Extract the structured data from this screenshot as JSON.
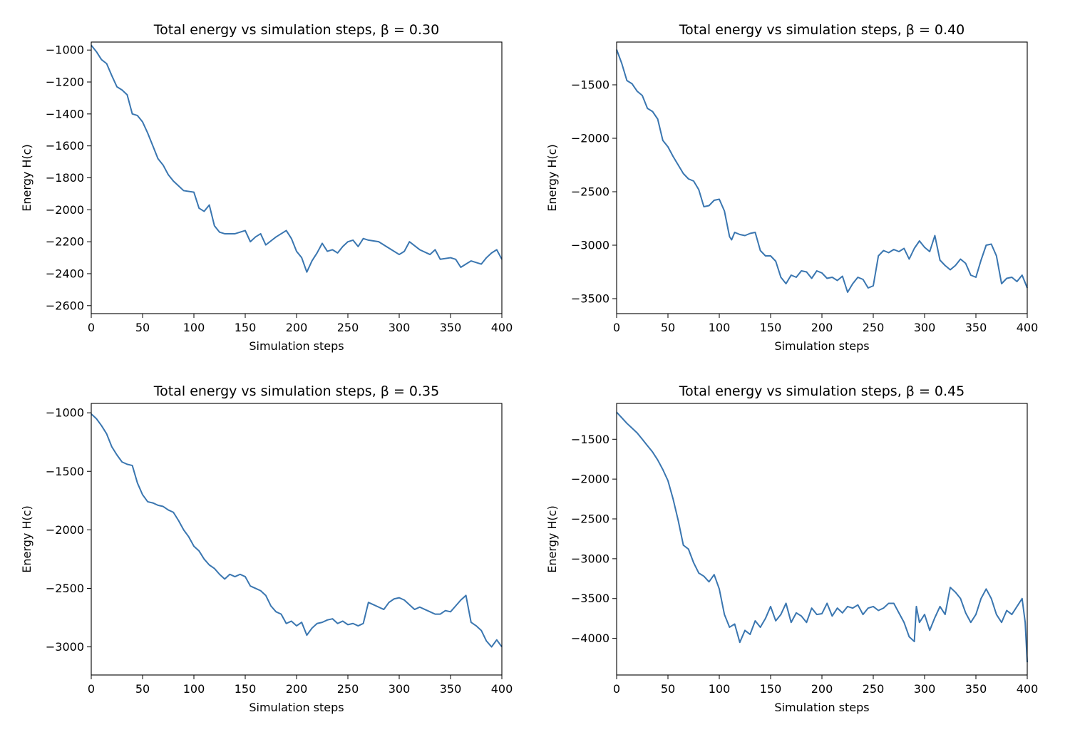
{
  "chart_data": [
    {
      "type": "line",
      "title": "Total energy vs simulation steps, β = 0.30",
      "xlabel": "Simulation steps",
      "ylabel": "Energy H(c)",
      "xlim": [
        0,
        400
      ],
      "ylim": [
        -2650,
        -950
      ],
      "xticks": [
        0,
        50,
        100,
        150,
        200,
        250,
        300,
        350,
        400
      ],
      "xtick_labels": [
        "0",
        "50",
        "100",
        "150",
        "200",
        "250",
        "300",
        "350",
        "400"
      ],
      "yticks": [
        -1000,
        -1200,
        -1400,
        -1600,
        -1800,
        -2000,
        -2200,
        -2400,
        -2600
      ],
      "ytick_labels": [
        "−1000",
        "−1200",
        "−1400",
        "−1600",
        "−1800",
        "−2000",
        "−2200",
        "−2400",
        "−2600"
      ],
      "line_color": "#3a76b0",
      "series": [
        {
          "x": [
            0,
            5,
            10,
            15,
            20,
            25,
            30,
            35,
            40,
            45,
            50,
            55,
            60,
            65,
            70,
            75,
            80,
            90,
            100,
            105,
            110,
            115,
            120,
            125,
            130,
            140,
            150,
            155,
            160,
            165,
            170,
            180,
            190,
            195,
            200,
            205,
            210,
            215,
            220,
            225,
            230,
            235,
            240,
            245,
            250,
            255,
            260,
            265,
            270,
            280,
            290,
            300,
            305,
            310,
            320,
            330,
            335,
            340,
            350,
            355,
            360,
            365,
            370,
            380,
            385,
            390,
            395,
            400
          ],
          "values": [
            -970,
            -1010,
            -1060,
            -1085,
            -1160,
            -1230,
            -1250,
            -1280,
            -1400,
            -1410,
            -1450,
            -1520,
            -1600,
            -1680,
            -1720,
            -1780,
            -1820,
            -1880,
            -1890,
            -1990,
            -2010,
            -1970,
            -2100,
            -2140,
            -2150,
            -2150,
            -2130,
            -2200,
            -2170,
            -2150,
            -2220,
            -2170,
            -2130,
            -2180,
            -2260,
            -2300,
            -2390,
            -2320,
            -2270,
            -2210,
            -2260,
            -2250,
            -2270,
            -2230,
            -2200,
            -2190,
            -2230,
            -2180,
            -2190,
            -2200,
            -2240,
            -2280,
            -2260,
            -2200,
            -2250,
            -2280,
            -2250,
            -2310,
            -2300,
            -2310,
            -2360,
            -2340,
            -2320,
            -2340,
            -2300,
            -2270,
            -2250,
            -2310
          ]
        }
      ]
    },
    {
      "type": "line",
      "title": "Total energy vs simulation steps, β = 0.40",
      "xlabel": "Simulation steps",
      "ylabel": "Energy H(c)",
      "xlim": [
        0,
        400
      ],
      "ylim": [
        -3640,
        -1100
      ],
      "xticks": [
        0,
        50,
        100,
        150,
        200,
        250,
        300,
        350,
        400
      ],
      "xtick_labels": [
        "0",
        "50",
        "100",
        "150",
        "200",
        "250",
        "300",
        "350",
        "400"
      ],
      "yticks": [
        -1500,
        -2000,
        -2500,
        -3000,
        -3500
      ],
      "ytick_labels": [
        "−1500",
        "−2000",
        "−2500",
        "−3000",
        "−3500"
      ],
      "line_color": "#3a76b0",
      "series": [
        {
          "x": [
            0,
            5,
            10,
            15,
            20,
            25,
            30,
            35,
            40,
            45,
            50,
            55,
            60,
            65,
            70,
            75,
            80,
            85,
            90,
            95,
            100,
            105,
            110,
            112,
            115,
            120,
            125,
            130,
            135,
            140,
            145,
            150,
            155,
            160,
            165,
            170,
            175,
            180,
            185,
            190,
            195,
            200,
            205,
            210,
            215,
            220,
            225,
            230,
            235,
            240,
            245,
            250,
            255,
            260,
            265,
            270,
            275,
            280,
            285,
            290,
            295,
            300,
            305,
            310,
            315,
            320,
            325,
            330,
            335,
            340,
            345,
            350,
            355,
            360,
            365,
            370,
            375,
            380,
            385,
            390,
            395,
            400
          ],
          "values": [
            -1170,
            -1300,
            -1460,
            -1490,
            -1560,
            -1600,
            -1720,
            -1750,
            -1820,
            -2020,
            -2080,
            -2170,
            -2250,
            -2330,
            -2380,
            -2400,
            -2480,
            -2640,
            -2630,
            -2580,
            -2570,
            -2680,
            -2920,
            -2950,
            -2880,
            -2900,
            -2910,
            -2890,
            -2880,
            -3050,
            -3100,
            -3100,
            -3150,
            -3300,
            -3360,
            -3280,
            -3300,
            -3240,
            -3250,
            -3310,
            -3240,
            -3260,
            -3310,
            -3300,
            -3330,
            -3290,
            -3440,
            -3360,
            -3300,
            -3320,
            -3400,
            -3380,
            -3100,
            -3050,
            -3070,
            -3040,
            -3060,
            -3030,
            -3130,
            -3030,
            -2960,
            -3020,
            -3060,
            -2910,
            -3140,
            -3190,
            -3230,
            -3190,
            -3130,
            -3170,
            -3280,
            -3300,
            -3140,
            -3000,
            -2990,
            -3100,
            -3360,
            -3310,
            -3300,
            -3340,
            -3280,
            -3400
          ]
        }
      ]
    },
    {
      "type": "line",
      "title": "Total energy vs simulation steps, β = 0.35",
      "xlabel": "Simulation steps",
      "ylabel": "Energy H(c)",
      "xlim": [
        0,
        400
      ],
      "ylim": [
        -3240,
        -920
      ],
      "xticks": [
        0,
        50,
        100,
        150,
        200,
        250,
        300,
        350,
        400
      ],
      "xtick_labels": [
        "0",
        "50",
        "100",
        "150",
        "200",
        "250",
        "300",
        "350",
        "400"
      ],
      "yticks": [
        -1000,
        -1500,
        -2000,
        -2500,
        -3000
      ],
      "ytick_labels": [
        "−1000",
        "−1500",
        "−2000",
        "−2500",
        "−3000"
      ],
      "line_color": "#3a76b0",
      "series": [
        {
          "x": [
            0,
            5,
            10,
            15,
            20,
            25,
            30,
            35,
            40,
            45,
            50,
            55,
            60,
            65,
            70,
            75,
            80,
            85,
            90,
            95,
            100,
            105,
            110,
            115,
            120,
            125,
            130,
            135,
            140,
            145,
            150,
            155,
            160,
            165,
            170,
            175,
            180,
            185,
            190,
            195,
            200,
            205,
            210,
            215,
            220,
            225,
            230,
            235,
            240,
            245,
            250,
            255,
            260,
            265,
            270,
            275,
            280,
            285,
            290,
            295,
            300,
            305,
            310,
            315,
            320,
            325,
            330,
            335,
            340,
            345,
            350,
            355,
            360,
            365,
            370,
            375,
            380,
            385,
            390,
            395,
            400
          ],
          "values": [
            -1010,
            -1050,
            -1110,
            -1180,
            -1290,
            -1360,
            -1420,
            -1440,
            -1450,
            -1600,
            -1700,
            -1760,
            -1770,
            -1790,
            -1800,
            -1830,
            -1850,
            -1920,
            -2000,
            -2060,
            -2140,
            -2180,
            -2250,
            -2300,
            -2330,
            -2380,
            -2420,
            -2380,
            -2400,
            -2380,
            -2400,
            -2480,
            -2500,
            -2520,
            -2560,
            -2650,
            -2700,
            -2720,
            -2800,
            -2780,
            -2820,
            -2790,
            -2900,
            -2840,
            -2800,
            -2790,
            -2770,
            -2760,
            -2800,
            -2780,
            -2810,
            -2800,
            -2820,
            -2800,
            -2620,
            -2640,
            -2660,
            -2680,
            -2620,
            -2590,
            -2580,
            -2600,
            -2640,
            -2680,
            -2660,
            -2680,
            -2700,
            -2720,
            -2720,
            -2690,
            -2700,
            -2650,
            -2600,
            -2560,
            -2790,
            -2820,
            -2860,
            -2950,
            -3000,
            -2940,
            -3000
          ]
        }
      ]
    },
    {
      "type": "line",
      "title": "Total energy vs simulation steps, β = 0.45",
      "xlabel": "Simulation steps",
      "ylabel": "Energy H(c)",
      "xlim": [
        0,
        400
      ],
      "ylim": [
        -4460,
        -1050
      ],
      "xticks": [
        0,
        50,
        100,
        150,
        200,
        250,
        300,
        350,
        400
      ],
      "xtick_labels": [
        "0",
        "50",
        "100",
        "150",
        "200",
        "250",
        "300",
        "350",
        "400"
      ],
      "yticks": [
        -1500,
        -2000,
        -2500,
        -3000,
        -3500,
        -4000
      ],
      "ytick_labels": [
        "−1500",
        "−2000",
        "−2500",
        "−3000",
        "−3500",
        "−4000"
      ],
      "line_color": "#3a76b0",
      "series": [
        {
          "x": [
            0,
            5,
            10,
            15,
            20,
            25,
            30,
            35,
            40,
            45,
            50,
            55,
            60,
            65,
            70,
            75,
            80,
            85,
            90,
            95,
            100,
            105,
            110,
            115,
            120,
            125,
            130,
            135,
            140,
            145,
            150,
            155,
            160,
            165,
            170,
            175,
            180,
            185,
            190,
            195,
            200,
            205,
            210,
            215,
            220,
            225,
            230,
            235,
            240,
            245,
            250,
            255,
            260,
            265,
            270,
            275,
            280,
            285,
            290,
            292,
            295,
            300,
            305,
            310,
            315,
            320,
            325,
            330,
            335,
            340,
            345,
            350,
            355,
            360,
            365,
            370,
            375,
            380,
            385,
            390,
            395,
            398,
            400
          ],
          "values": [
            -1160,
            -1230,
            -1300,
            -1360,
            -1420,
            -1500,
            -1580,
            -1660,
            -1760,
            -1880,
            -2020,
            -2250,
            -2520,
            -2830,
            -2880,
            -3050,
            -3180,
            -3220,
            -3290,
            -3200,
            -3380,
            -3700,
            -3860,
            -3820,
            -4050,
            -3900,
            -3950,
            -3780,
            -3860,
            -3750,
            -3600,
            -3780,
            -3700,
            -3560,
            -3800,
            -3680,
            -3720,
            -3800,
            -3620,
            -3700,
            -3690,
            -3560,
            -3720,
            -3620,
            -3680,
            -3600,
            -3620,
            -3580,
            -3700,
            -3620,
            -3600,
            -3650,
            -3620,
            -3560,
            -3560,
            -3680,
            -3800,
            -3980,
            -4040,
            -3600,
            -3800,
            -3700,
            -3900,
            -3740,
            -3600,
            -3700,
            -3360,
            -3420,
            -3500,
            -3680,
            -3800,
            -3700,
            -3500,
            -3380,
            -3500,
            -3700,
            -3800,
            -3650,
            -3700,
            -3600,
            -3500,
            -3800,
            -4300
          ]
        }
      ]
    }
  ]
}
